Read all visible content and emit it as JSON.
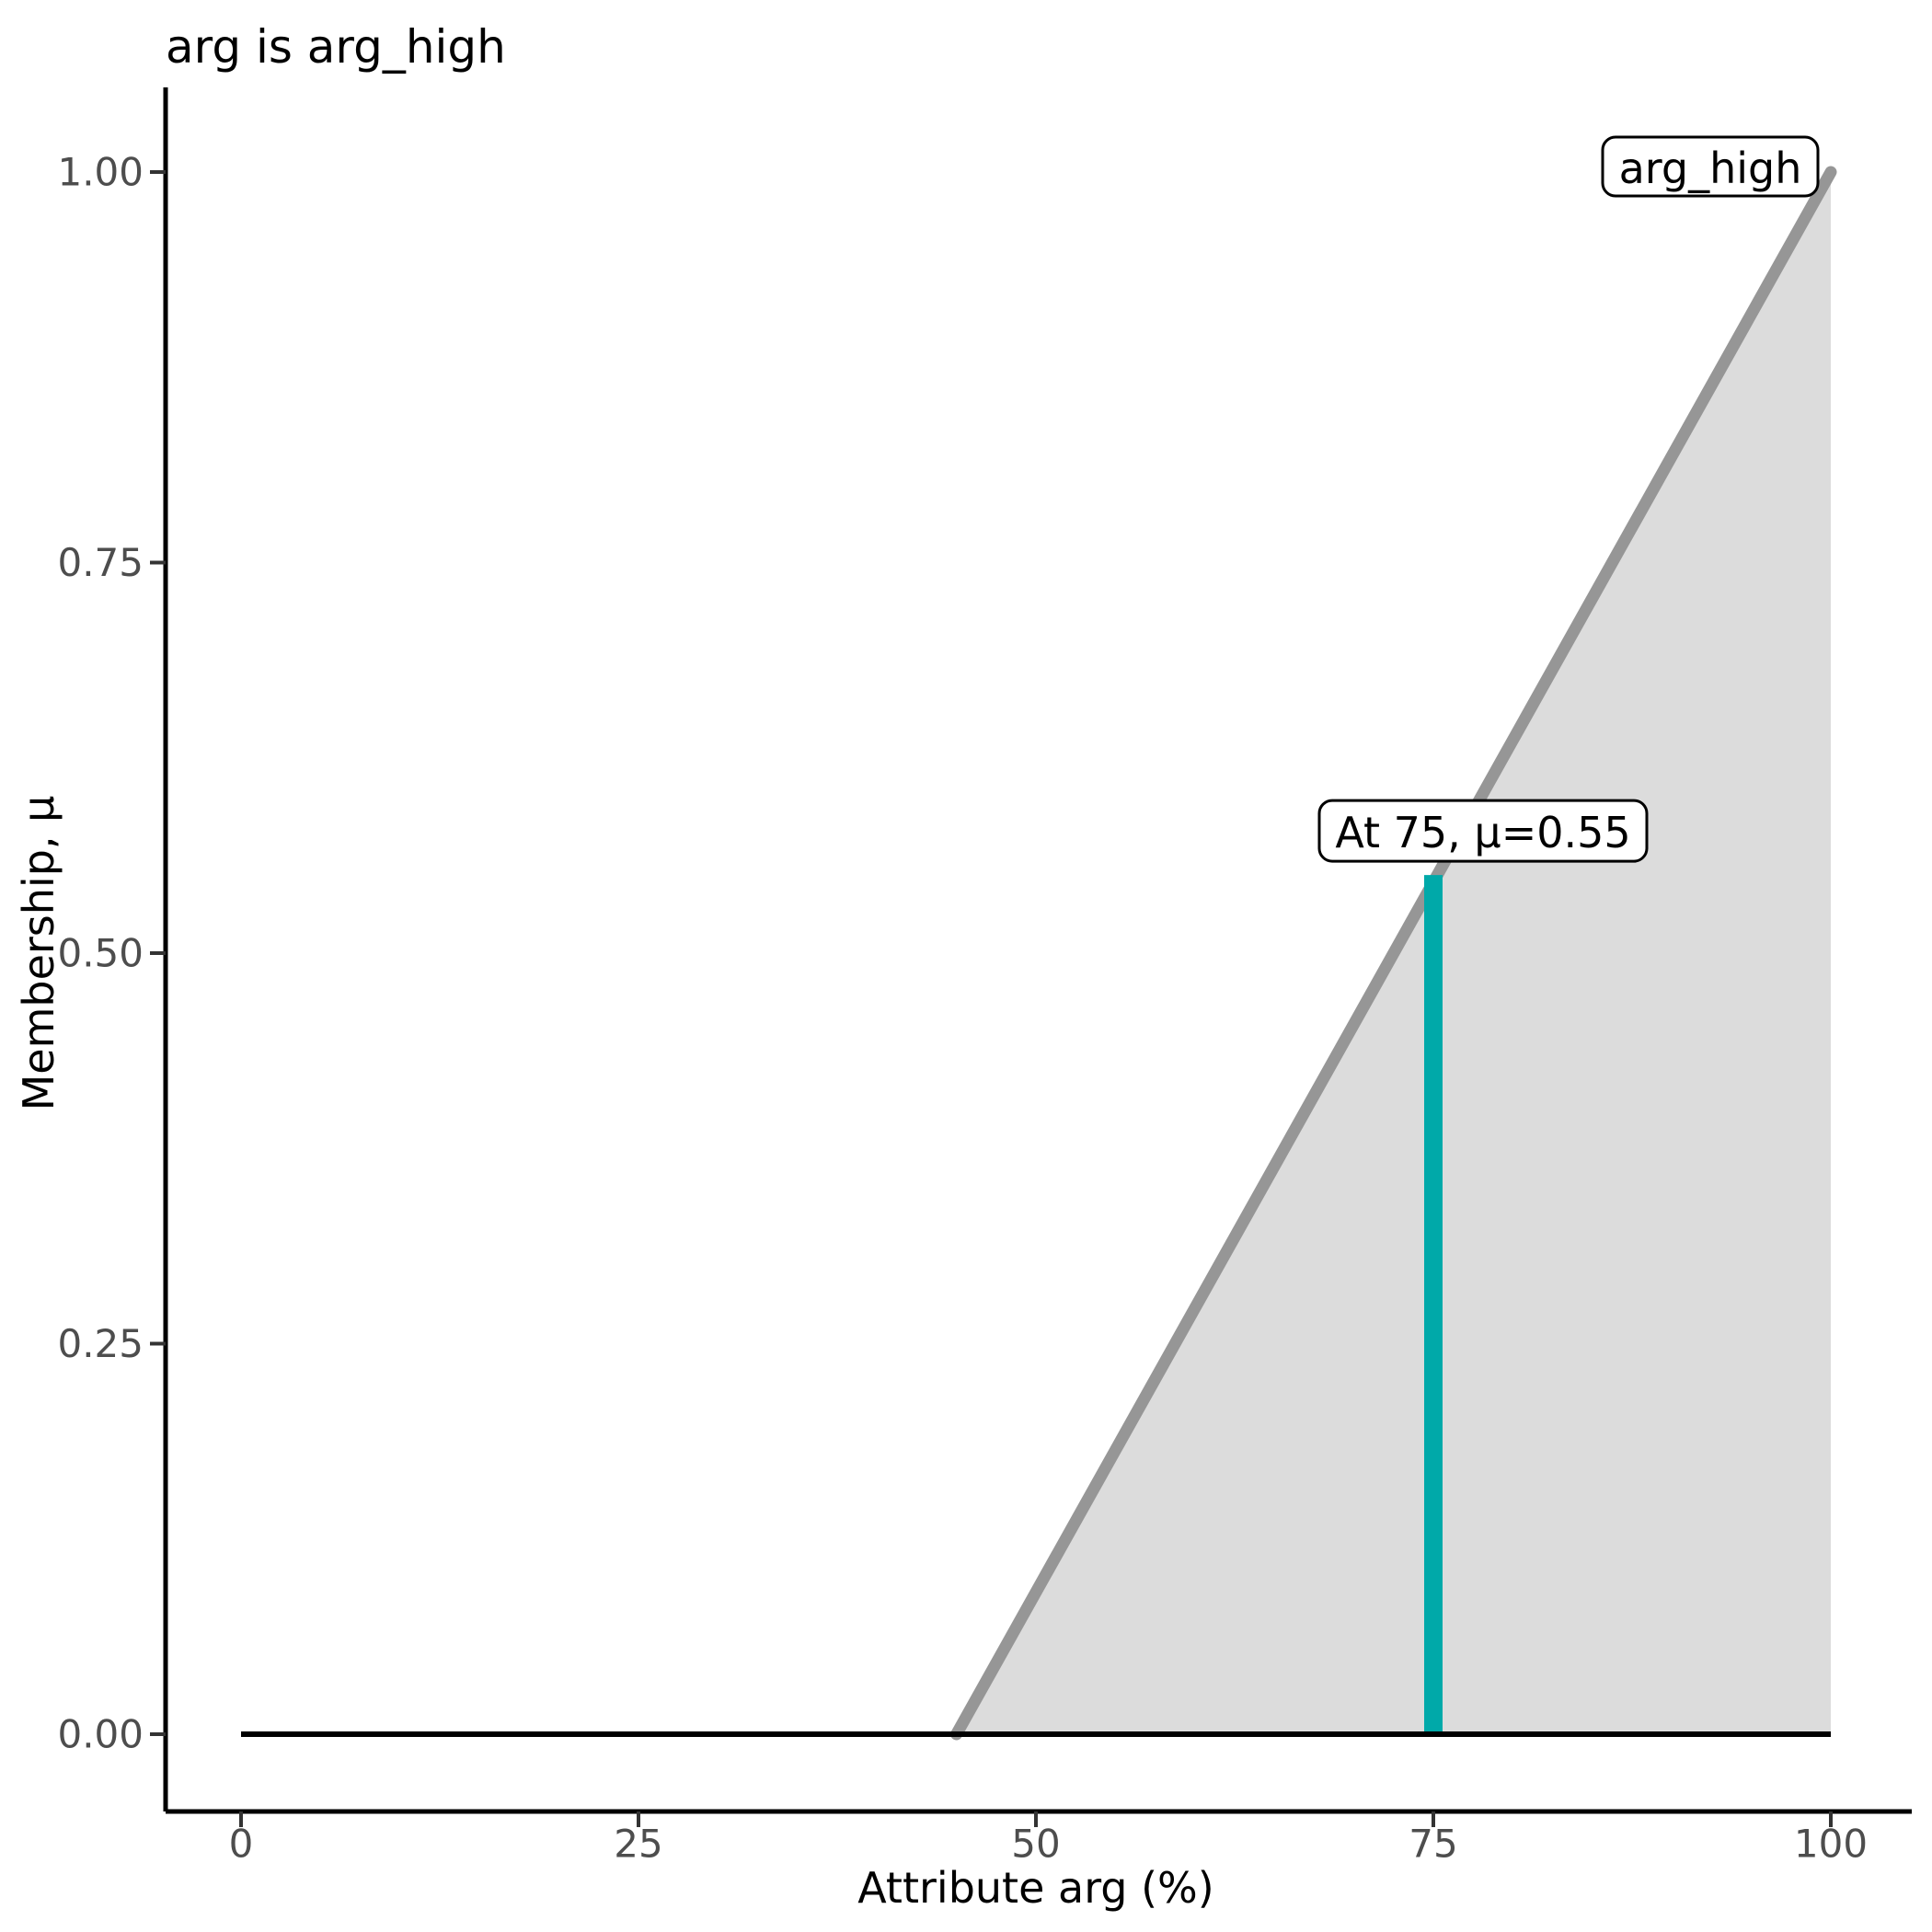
{
  "page": {
    "background": "#FFFFFF"
  },
  "chart_data": {
    "type": "area",
    "title": "arg is arg_high",
    "xlabel": "Attribute arg (%)",
    "ylabel": "Membership, μ",
    "xlim": [
      0,
      100
    ],
    "ylim": [
      0,
      1
    ],
    "grid": false,
    "legend": "none",
    "x_ticks": {
      "values": [
        0,
        25,
        50,
        75,
        100
      ],
      "labels": [
        "0",
        "25",
        "50",
        "75",
        "100"
      ]
    },
    "y_ticks": {
      "values": [
        0,
        0.25,
        0.5,
        0.75,
        1
      ],
      "labels": [
        "0.00",
        "0.25",
        "0.50",
        "0.75",
        "1.00"
      ]
    },
    "series": [
      {
        "name": "zero_baseline",
        "type": "line",
        "color": "#000000",
        "points": [
          [
            0,
            0
          ],
          [
            100,
            0
          ]
        ]
      },
      {
        "name": "arg_high_membership",
        "type": "area",
        "line_color": "#969696",
        "fill_color": "#DCDCDC",
        "points": [
          [
            45,
            0
          ],
          [
            100,
            1
          ]
        ]
      }
    ],
    "marker": {
      "name": "crisp_input_cut",
      "x": 75,
      "mu": 0.55,
      "color": "#00A9A9"
    },
    "annotations": [
      {
        "id": "cut-label",
        "label": "At 75, μ=0.55",
        "x": 75,
        "y": 0.55
      },
      {
        "id": "set-label",
        "label": "arg_high",
        "x": 100,
        "y": 1.0
      }
    ],
    "styles": {
      "axis_color": "#000000",
      "tick_color": "#333333",
      "tick_label_color": "#4D4D4D",
      "text_color": "#000000",
      "label_box_fill": "#FFFFFF",
      "label_box_border": "#000000"
    }
  }
}
